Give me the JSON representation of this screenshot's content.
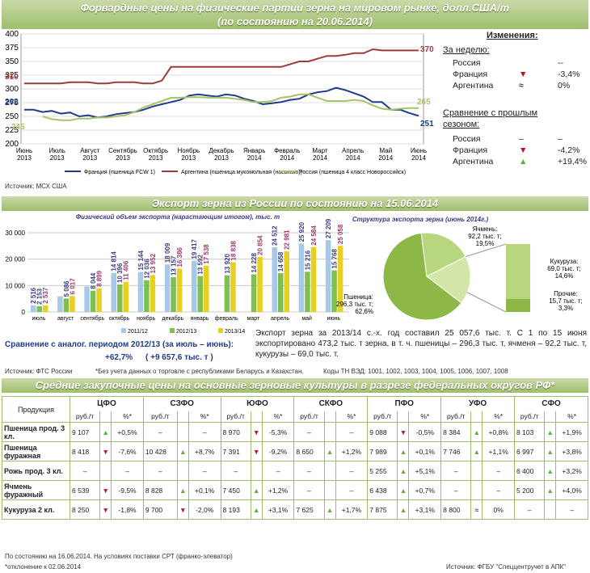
{
  "banner1": {
    "line1": "Форвардные цены на физические партии зерна на мировом рынке, долл.США/т",
    "line2": "(по состоянию на 20.06.2014)"
  },
  "banner2": {
    "title": "Экспорт зерна из России по состоянию на 15.06.2014"
  },
  "banner3": {
    "title": "Средние закупочные цены на основные зерновые культуры в разрезе федеральных округов РФ*"
  },
  "colors": {
    "france": "#1f3d8c",
    "argentina": "#9b3b3b",
    "russia": "#a8c26a",
    "b1112": "#a8c8e8",
    "b1213": "#7ec050",
    "b1314": "#e8d020",
    "up": "#5aae3f",
    "down": "#c0121b",
    "eq": "#1f3d9a"
  },
  "chart_data": [
    {
      "type": "line",
      "title": "",
      "ylim": [
        200,
        400
      ],
      "yticks": [
        200,
        225,
        250,
        275,
        300,
        325,
        350,
        375,
        400
      ],
      "x_labels": [
        [
          "Июнь",
          "2013"
        ],
        [
          "Июль",
          "2013"
        ],
        [
          "Август",
          "2013"
        ],
        [
          "Сентябрь",
          "2013"
        ],
        [
          "Октябрь",
          "2013"
        ],
        [
          "Ноябрь",
          "2013"
        ],
        [
          "Декабрь",
          "2013"
        ],
        [
          "Январь",
          "2014"
        ],
        [
          "Февраль",
          "2014"
        ],
        [
          "Март",
          "2014"
        ],
        [
          "Апрель",
          "2014"
        ],
        [
          "Май",
          "2014"
        ],
        [
          "Июнь",
          "2014"
        ]
      ],
      "series": [
        {
          "name": "Франция (пшеница FCW 1)",
          "start_label": "262",
          "end_label": "251",
          "values": [
            262,
            262,
            258,
            260,
            255,
            257,
            250,
            252,
            248,
            250,
            254,
            256,
            258,
            262,
            268,
            272,
            276,
            280,
            288,
            290,
            288,
            286,
            290,
            288,
            282,
            278,
            272,
            274,
            276,
            280,
            282,
            290,
            294,
            296,
            302,
            298,
            292,
            286,
            276,
            276,
            262,
            262,
            256,
            251
          ]
        },
        {
          "name": "Аргентина (пшеница мукомольная (насыпью))",
          "start_label": "310",
          "end_label": "370",
          "values": [
            310,
            310,
            310,
            310,
            310,
            312,
            312,
            312,
            310,
            310,
            312,
            312,
            312,
            310,
            310,
            315,
            340,
            340,
            340,
            340,
            340,
            340,
            340,
            340,
            340,
            340,
            340,
            340,
            340,
            345,
            350,
            350,
            355,
            360,
            360,
            362,
            365,
            365,
            372,
            370,
            370,
            370,
            370,
            370
          ]
        },
        {
          "name": "Россия (пшеница 4 класс Новороссийск)",
          "start_label": "245",
          "end_label": "265",
          "values": [
            null,
            null,
            250,
            245,
            243,
            243,
            246,
            246,
            248,
            248,
            250,
            252,
            258,
            266,
            272,
            278,
            284,
            284,
            285,
            285,
            284,
            284,
            284,
            282,
            280,
            276,
            276,
            278,
            284,
            286,
            290,
            290,
            284,
            278,
            278,
            278,
            280,
            278,
            270,
            264,
            262,
            264,
            265,
            265
          ]
        }
      ]
    },
    {
      "type": "bar",
      "title": "Физический объем экспорта (нарастающим итогом), тыс. т",
      "ylim": [
        0,
        30000
      ],
      "yticks": [
        "0",
        "10 000",
        "20 000",
        "30 000"
      ],
      "categories": [
        "июль",
        "август",
        "сентябрь",
        "октябрь",
        "ноябрь",
        "декабрь",
        "январь",
        "февраль",
        "март",
        "апрель",
        "май",
        "июнь"
      ],
      "series": [
        {
          "name": "2011/12",
          "values": [
            2516,
            5950,
            9700,
            14814,
            15144,
            18009,
            19417,
            null,
            null,
            24512,
            25920,
            27209
          ],
          "labels": [
            "2 516",
            "",
            "",
            "14 814",
            "15 144",
            "18 009",
            "19 417",
            "",
            "",
            "24 512",
            "25 920",
            "27 209"
          ]
        },
        {
          "name": "2012/13",
          "values": [
            2153,
            5086,
            8044,
            10396,
            12036,
            13157,
            13592,
            13920,
            14228,
            14658,
            15216,
            15768
          ],
          "labels": [
            "2 153",
            "5 086",
            "8 044",
            "10 396",
            "12 036",
            "13 157",
            "13 592",
            "13 920",
            "14 228",
            "14 658",
            "15 216",
            "15 768"
          ]
        },
        {
          "name": "2013/14",
          "values": [
            2537,
            6017,
            8899,
            11406,
            13952,
            16386,
            17538,
            18838,
            20854,
            22981,
            24584,
            25058
          ],
          "labels": [
            "2 537",
            "6 017",
            "8 899",
            "11 406",
            "13 952",
            "16 386",
            "17 538",
            "18 838",
            "20 854",
            "22 981",
            "24 584",
            "25 058"
          ]
        }
      ]
    },
    {
      "type": "pie",
      "title": "Структура экспорта зерна (июнь 2014г.)",
      "slices": [
        {
          "label": "Пшеница:",
          "value_label": "296,3 тыс. т;",
          "pct_label": "62,6%",
          "value": 62.6
        },
        {
          "label": "Ячмень:",
          "value_label": "92,2 тыс. т;",
          "pct_label": "19,5%",
          "value": 19.5
        },
        {
          "label": "Кукуруза:",
          "value_label": "69,0 тыс. т;",
          "pct_label": "14,6%",
          "value": 14.6
        },
        {
          "label": "Прочие:",
          "value_label": "15,7 тыс. т;",
          "pct_label": "3,3%",
          "value": 3.3
        }
      ]
    }
  ],
  "changes": {
    "title": "Изменения:",
    "week_label": "За неделю:",
    "week": [
      {
        "name": "Россия",
        "dir": "none",
        "val": "--"
      },
      {
        "name": "Франция",
        "dir": "down",
        "val": "-3,4%"
      },
      {
        "name": "Аргентина",
        "dir": "eq",
        "val": "0%"
      }
    ],
    "season_label_1": "Сравнение с прошлым",
    "season_label_2": "сезоном:",
    "season": [
      {
        "name": "Россия",
        "dir": "dash",
        "val": "–"
      },
      {
        "name": "Франция",
        "dir": "down",
        "val": "-4,2%"
      },
      {
        "name": "Аргентина",
        "dir": "up",
        "val": "+19,4%"
      }
    ]
  },
  "source1": "Источник: МСХ США",
  "export_compare": {
    "title": "Сравнение с аналог. периодом 2012/13 (за июль – июнь):",
    "pct": "+62,7%",
    "abs": "( +9 657,6 тыс. т )"
  },
  "export_text": "Экспорт зерна за 2013/14 с.-х. год составил 25 057,6 тыс. т. С 1 по 15 июня экспортировано 473,2 тыс. т зерна, в т. ч. пшеницы – 296,3 тыс. т, ячменя – 92,2 тыс. т, кукурузы – 69,0 тыс. т.",
  "source2": "Источник: ФТС России",
  "note2": "*Без учета данных о торговле с республиками Беларусь и Казахстан.",
  "codes": "Коды ТН ВЭД: 1001, 1002, 1003, 1004, 1005, 1006, 1007, 1008",
  "table": {
    "product_header": "Продукция",
    "districts": [
      "ЦФО",
      "СЗФО",
      "ЮФО",
      "СКФО",
      "ПФО",
      "УФО",
      "СФО"
    ],
    "unit": "руб./т",
    "pct": "%*",
    "rows": [
      {
        "name": "Пшеница прод. 3 кл.",
        "cells": [
          [
            "9 107",
            "up",
            "+0,5%"
          ],
          [
            "–",
            "",
            ""
          ],
          [
            "8 970",
            "down",
            "-5,3%"
          ],
          [
            "–",
            "",
            ""
          ],
          [
            "9 088",
            "down",
            "-0,5%"
          ],
          [
            "8 384",
            "up",
            "+0,8%"
          ],
          [
            "8 103",
            "up",
            "+1,9%"
          ]
        ]
      },
      {
        "name": "Пшеница фуражная",
        "cells": [
          [
            "8 418",
            "down",
            "-7,6%"
          ],
          [
            "10 428",
            "up",
            "+8,7%"
          ],
          [
            "7 391",
            "down",
            "-9,2%"
          ],
          [
            "8 650",
            "up",
            "+1,2%"
          ],
          [
            "7 989",
            "up",
            "+0,1%"
          ],
          [
            "7 746",
            "up",
            "+1,1%"
          ],
          [
            "6 997",
            "up",
            "+3,8%"
          ]
        ]
      },
      {
        "name": "Рожь прод. 3 кл.",
        "cells": [
          [
            "–",
            "",
            ""
          ],
          [
            "–",
            "",
            ""
          ],
          [
            "–",
            "",
            ""
          ],
          [
            "–",
            "",
            ""
          ],
          [
            "5 255",
            "up",
            "+5,1%"
          ],
          [
            "–",
            "",
            ""
          ],
          [
            "6 400",
            "up",
            "+3,2%"
          ]
        ]
      },
      {
        "name": "Ячмень фуражный",
        "cells": [
          [
            "6 539",
            "down",
            "-9,5%"
          ],
          [
            "8 828",
            "up",
            "+0,1%"
          ],
          [
            "7 450",
            "up",
            "+1,2%"
          ],
          [
            "–",
            "",
            ""
          ],
          [
            "6 438",
            "up",
            "+0,7%"
          ],
          [
            "–",
            "",
            ""
          ],
          [
            "5 200",
            "up",
            "+4,0%"
          ]
        ]
      },
      {
        "name": "Кукуруза 2 кл.",
        "cells": [
          [
            "8 250",
            "down",
            "-1,8%"
          ],
          [
            "9 700",
            "down",
            "-2,0%"
          ],
          [
            "8 193",
            "up",
            "+3,1%"
          ],
          [
            "7 625",
            "up",
            "+1,7%"
          ],
          [
            "7 875",
            "up",
            "+3,1%"
          ],
          [
            "8 800",
            "eq",
            "0%"
          ],
          [
            "–",
            "",
            ""
          ]
        ]
      }
    ]
  },
  "footer": {
    "left1": "По состоянию на 16.06.2014. На условиях поставки СРТ (франко-элеватор)",
    "left2": "*отклонение к 02.06.2014",
    "right": "Источник: ФГБУ \"Спеццентручет в АПК\""
  }
}
